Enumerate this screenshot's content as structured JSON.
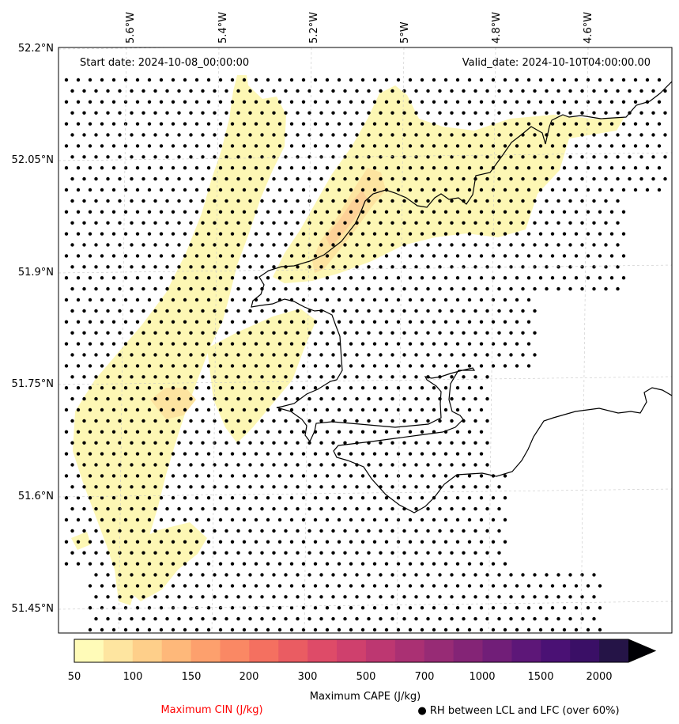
{
  "map": {
    "start_date_label": "Start date: 2024-10-08_00:00:00",
    "valid_date_label": "Valid_date: 2024-10-10T04:00:00.00",
    "lon_ticks": [
      "5.6°W",
      "5.4°W",
      "5.2°W",
      "5°W",
      "4.8°W",
      "4.6°W"
    ],
    "lat_ticks": [
      "52.2°N",
      "52.05°N",
      "51.9°N",
      "51.75°N",
      "51.6°N",
      "51.45°N"
    ],
    "coastline_color": "#000000",
    "dot_color": "#000000",
    "field_colors": {
      "light": "#fdf7b4",
      "medium": "#fde4a0",
      "strong": "#fdd197"
    }
  },
  "colorbar": {
    "ticks": [
      "50",
      "100",
      "150",
      "200",
      "300",
      "500",
      "700",
      "1000",
      "1500",
      "2000"
    ],
    "label": "Maximum CAPE (J/kg)",
    "colors": [
      "#fffbb8",
      "#fee5a0",
      "#fecf8a",
      "#feb87a",
      "#fda06d",
      "#fa8864",
      "#f47060",
      "#ea5c62",
      "#de4b68",
      "#cf406d",
      "#bd3771",
      "#aa3073",
      "#972b75",
      "#842476",
      "#711e78",
      "#5d1778",
      "#4a1174",
      "#3a0f66",
      "#251447"
    ],
    "extend_color": "#000004"
  },
  "legend": {
    "cin_label": "Maximum CIN (J/kg)",
    "cin_color": "#ff0000",
    "rh_label": "● RH between LCL and LFC (over 60%)"
  }
}
